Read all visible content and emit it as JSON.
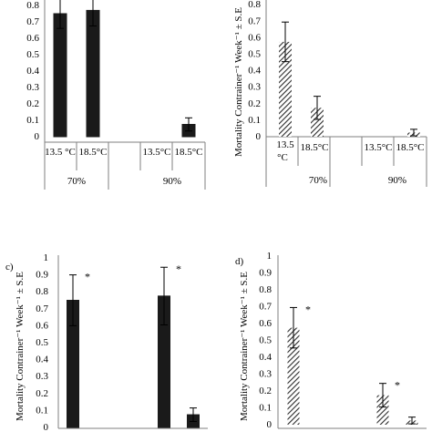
{
  "colors": {
    "solid": "#1a1a1a",
    "hatch": "#2b2b2b",
    "axis": "#7f7f7f"
  },
  "chart_data": [
    {
      "type": "bar",
      "ylabel": "",
      "ylim": [
        0,
        0.8
      ],
      "yticks": [
        "0",
        "0.1",
        "0.2",
        "0.3",
        "0.4",
        "0.5",
        "0.6",
        "0.7",
        "0.8"
      ],
      "fill": "solid",
      "groups": [
        {
          "label": "70%",
          "categories": [
            "13.5 °C",
            "18.5°C"
          ]
        },
        {
          "label": "90%",
          "categories": [
            "13.5°C",
            "18.5°C"
          ]
        }
      ],
      "values": [
        0.75,
        0.77,
        0,
        0.075
      ],
      "errors": [
        0.09,
        0.095,
        0,
        0.04
      ]
    },
    {
      "type": "bar",
      "ylabel": "Mortality Contrainer⁻¹ Week⁻¹ ± S.E",
      "ylim": [
        0,
        0.8
      ],
      "yticks": [
        "0",
        "0.1",
        "0.2",
        "0.3",
        "0.4",
        "0.5",
        "0.6",
        "0.7",
        "0.8"
      ],
      "fill": "hatch",
      "groups": [
        {
          "label": "70%",
          "categories": [
            "13.5 °C",
            "18.5°C"
          ]
        },
        {
          "label": "90%",
          "categories": [
            "13.5°C",
            "18.5°C"
          ]
        }
      ],
      "values": [
        0.575,
        0.175,
        0,
        0.025
      ],
      "errors": [
        0.12,
        0.07,
        0,
        0.02
      ]
    },
    {
      "type": "bar",
      "panel_label": "c)",
      "ylabel": "Mortality Contrainer⁻¹ Week⁻¹ ± S.E",
      "ylim": [
        0,
        1
      ],
      "yticks": [
        "0",
        "0.1",
        "0.2",
        "0.3",
        "0.4",
        "0.5",
        "0.6",
        "0.7",
        "0.8",
        "0.9",
        "1"
      ],
      "fill": "solid",
      "values": [
        0.75,
        0,
        0.775,
        0.075
      ],
      "errors": [
        0.15,
        0,
        0.17,
        0.04
      ],
      "annotations": [
        "*",
        "",
        "*",
        ""
      ]
    },
    {
      "type": "bar",
      "panel_label": "d)",
      "ylabel": "Mortality Contrainer⁻¹ Week⁻¹ ± S.E",
      "ylim": [
        0,
        1
      ],
      "yticks": [
        "0",
        "0.1",
        "0.2",
        "0.3",
        "0.4",
        "0.5",
        "0.6",
        "0.7",
        "0.8",
        "0.9",
        "1"
      ],
      "fill": "hatch",
      "values": [
        0.575,
        0,
        0.175,
        0.025
      ],
      "errors": [
        0.12,
        0,
        0.07,
        0.02
      ],
      "annotations": [
        "*",
        "",
        "*",
        ""
      ]
    }
  ]
}
